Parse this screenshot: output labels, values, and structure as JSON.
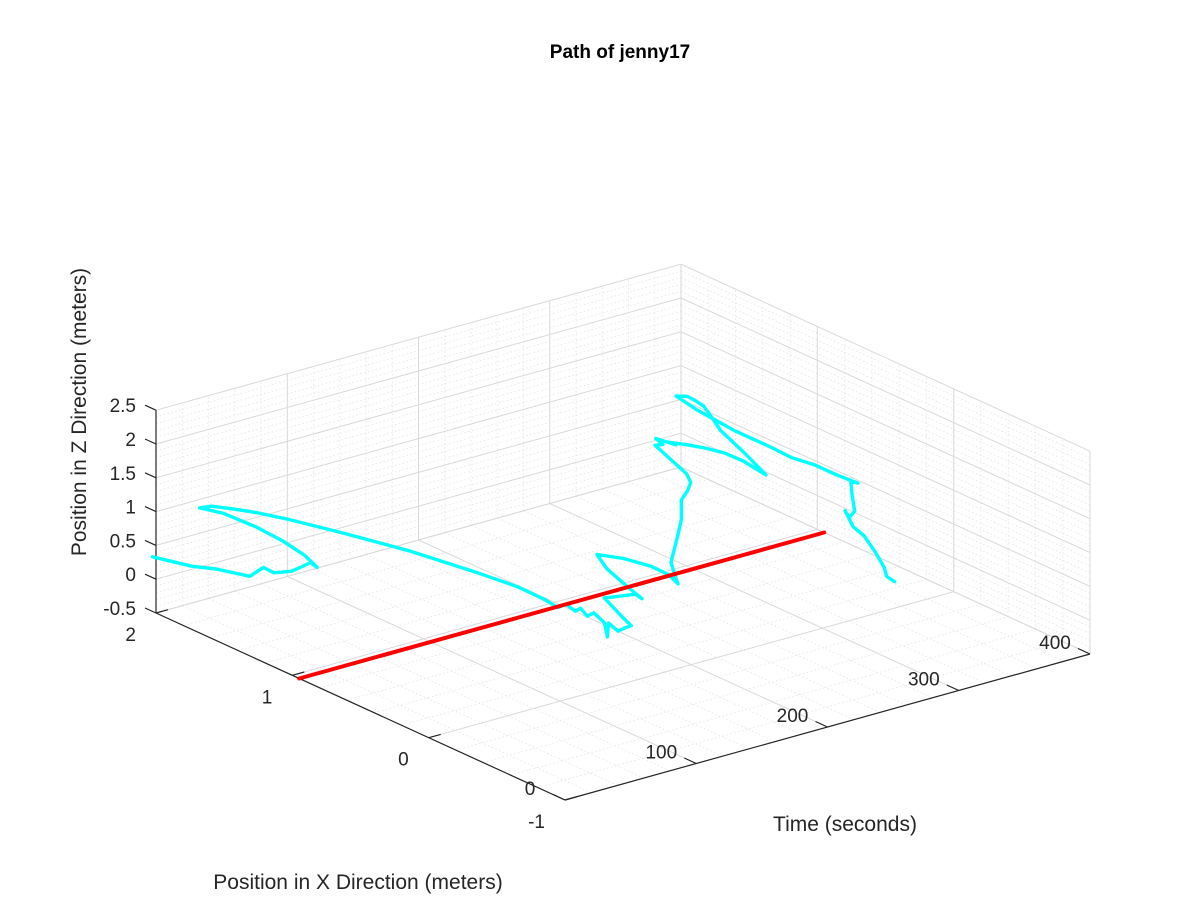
{
  "chart_data": {
    "type": "line",
    "title": "Path of jenny17",
    "xlabel": "Time (seconds)",
    "ylabel": "Position in X Direction (meters)",
    "zlabel": "Position in Z Direction (meters)",
    "x_ticks": [
      "0",
      "100",
      "200",
      "300",
      "400"
    ],
    "y_ticks": [
      "-1",
      "0",
      "1",
      "2"
    ],
    "z_ticks": [
      "-0.5",
      "0",
      "0.5",
      "1",
      "1.5",
      "2",
      "2.5"
    ],
    "xlim": [
      0,
      400
    ],
    "ylim": [
      -1,
      2
    ],
    "zlim": [
      -0.5,
      2.5
    ],
    "grid": "on (major and minor)",
    "colors": {
      "path": "#00ffff",
      "reference": "#ff0000"
    },
    "series": [
      {
        "color": "#00ffff",
        "points": [
          [
            18,
            2.2,
            0.05
          ],
          [
            22,
            1.95,
            0.12
          ],
          [
            25,
            1.8,
            0.2
          ],
          [
            30,
            1.6,
            0.25
          ],
          [
            35,
            1.55,
            0.4
          ],
          [
            38,
            1.5,
            0.35
          ],
          [
            41,
            1.4,
            0.45
          ],
          [
            44,
            1.35,
            0.55
          ],
          [
            47,
            1.32,
            0.62
          ],
          [
            50,
            1.3,
            0.55
          ],
          [
            46,
            1.35,
            0.7
          ],
          [
            40,
            1.45,
            0.85
          ],
          [
            35,
            1.6,
            0.95
          ],
          [
            30,
            1.8,
            1.0
          ],
          [
            28,
            1.95,
            0.95
          ],
          [
            32,
            1.9,
            1.0
          ],
          [
            38,
            1.8,
            1.02
          ],
          [
            45,
            1.7,
            1.02
          ],
          [
            55,
            1.55,
            1.0
          ],
          [
            70,
            1.3,
            0.95
          ],
          [
            90,
            1.0,
            0.85
          ],
          [
            110,
            0.7,
            0.7
          ],
          [
            125,
            0.55,
            0.55
          ],
          [
            135,
            0.45,
            0.4
          ],
          [
            140,
            0.4,
            0.3
          ],
          [
            144,
            0.38,
            0.35
          ],
          [
            148,
            0.35,
            0.25
          ],
          [
            150,
            0.33,
            0.3
          ],
          [
            152,
            0.3,
            0.2
          ],
          [
            155,
            0.28,
            0.25
          ],
          [
            158,
            0.25,
            0.15
          ],
          [
            160,
            0.25,
            0.1
          ],
          [
            161,
            0.24,
            -0.1
          ],
          [
            162,
            0.24,
            0.1
          ],
          [
            165,
            0.2,
            0.0
          ],
          [
            168,
            0.18,
            0.05
          ],
          [
            170,
            0.15,
            0.1
          ],
          [
            168,
            0.2,
            0.2
          ],
          [
            165,
            0.3,
            0.4
          ],
          [
            167,
            0.25,
            0.45
          ],
          [
            170,
            0.2,
            0.5
          ],
          [
            173,
            0.15,
            0.55
          ],
          [
            175,
            0.12,
            0.5
          ],
          [
            173,
            0.2,
            0.6
          ],
          [
            172,
            0.35,
            0.75
          ],
          [
            175,
            0.45,
            0.85
          ],
          [
            180,
            0.3,
            0.9
          ],
          [
            185,
            0.15,
            0.9
          ],
          [
            188,
            0.05,
            0.85
          ],
          [
            190,
            0.0,
            0.75
          ],
          [
            193,
            0.05,
            0.8
          ],
          [
            195,
            0.1,
            0.95
          ],
          [
            200,
            0.1,
            1.3
          ],
          [
            203,
            0.1,
            1.55
          ],
          [
            205,
            0.12,
            1.8
          ],
          [
            208,
            0.1,
            1.95
          ],
          [
            210,
            0.1,
            2.05
          ],
          [
            212,
            0.15,
            2.12
          ],
          [
            214,
            0.4,
            2.3
          ],
          [
            220,
            0.4,
            2.28
          ],
          [
            225,
            0.5,
            2.25
          ],
          [
            230,
            0.4,
            2.22
          ],
          [
            234,
            0.5,
            2.15
          ],
          [
            238,
            0.4,
            2.18
          ],
          [
            242,
            0.3,
            2.2
          ],
          [
            246,
            0.2,
            2.2
          ],
          [
            250,
            0.1,
            2.15
          ],
          [
            254,
            0.0,
            2.05
          ],
          [
            257,
            0.0,
            2.0
          ],
          [
            260,
            0.2,
            2.15
          ],
          [
            264,
            0.4,
            2.25
          ],
          [
            268,
            0.5,
            2.32
          ],
          [
            272,
            0.6,
            2.38
          ],
          [
            276,
            0.7,
            2.35
          ],
          [
            280,
            0.8,
            2.3
          ],
          [
            282,
            0.9,
            2.2
          ],
          [
            288,
            0.8,
            2.05
          ],
          [
            295,
            0.6,
            1.9
          ],
          [
            302,
            0.4,
            1.8
          ],
          [
            308,
            0.3,
            1.7
          ],
          [
            315,
            0.2,
            1.65
          ],
          [
            322,
            0.1,
            1.55
          ],
          [
            327,
            0.0,
            1.5
          ],
          [
            330,
            0.05,
            1.45
          ],
          [
            332,
            0.1,
            1.4
          ],
          [
            333,
            0.1,
            1.2
          ],
          [
            335,
            0.1,
            0.95
          ],
          [
            336,
            0.15,
            0.8
          ],
          [
            338,
            0.2,
            0.85
          ],
          [
            339,
            0.15,
            0.65
          ],
          [
            342,
            0.1,
            0.55
          ],
          [
            345,
            0.05,
            0.35
          ],
          [
            347,
            0.0,
            0.15
          ],
          [
            349,
            0.0,
            0.0
          ],
          [
            353,
            -0.02,
            -0.08
          ]
        ]
      },
      {
        "color": "#ff0000",
        "points": [
          [
            0,
            0.95,
            -0.5
          ],
          [
            400,
            0.95,
            -0.5
          ]
        ]
      }
    ]
  }
}
